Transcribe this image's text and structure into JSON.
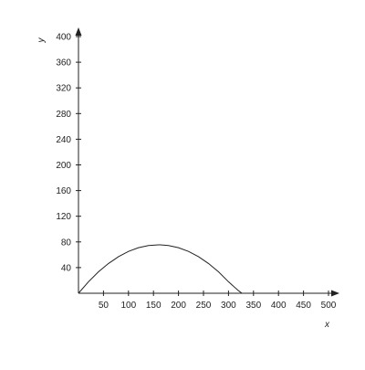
{
  "chart_data": {
    "type": "line",
    "title": "",
    "xlabel": "x",
    "ylabel": "y",
    "xlim": [
      0,
      500
    ],
    "ylim": [
      0,
      400
    ],
    "x_ticks": [
      50,
      100,
      150,
      200,
      250,
      300,
      350,
      400,
      450,
      500
    ],
    "y_ticks": [
      40,
      80,
      120,
      160,
      200,
      240,
      280,
      320,
      360,
      400
    ],
    "grid": false,
    "legend": "none",
    "series": [
      {
        "type": "curve",
        "color": "#222222",
        "x": [
          0,
          20,
          40,
          60,
          80,
          100,
          120,
          140,
          160,
          163.5,
          180,
          200,
          220,
          240,
          260,
          280,
          300,
          320,
          327
        ],
        "y": [
          0,
          17.9,
          33.4,
          46.4,
          57.0,
          65.2,
          71.0,
          74.4,
          75.4,
          75.4,
          74.4,
          71.0,
          65.2,
          57.0,
          46.4,
          33.4,
          17.9,
          4.0,
          0
        ]
      }
    ]
  }
}
